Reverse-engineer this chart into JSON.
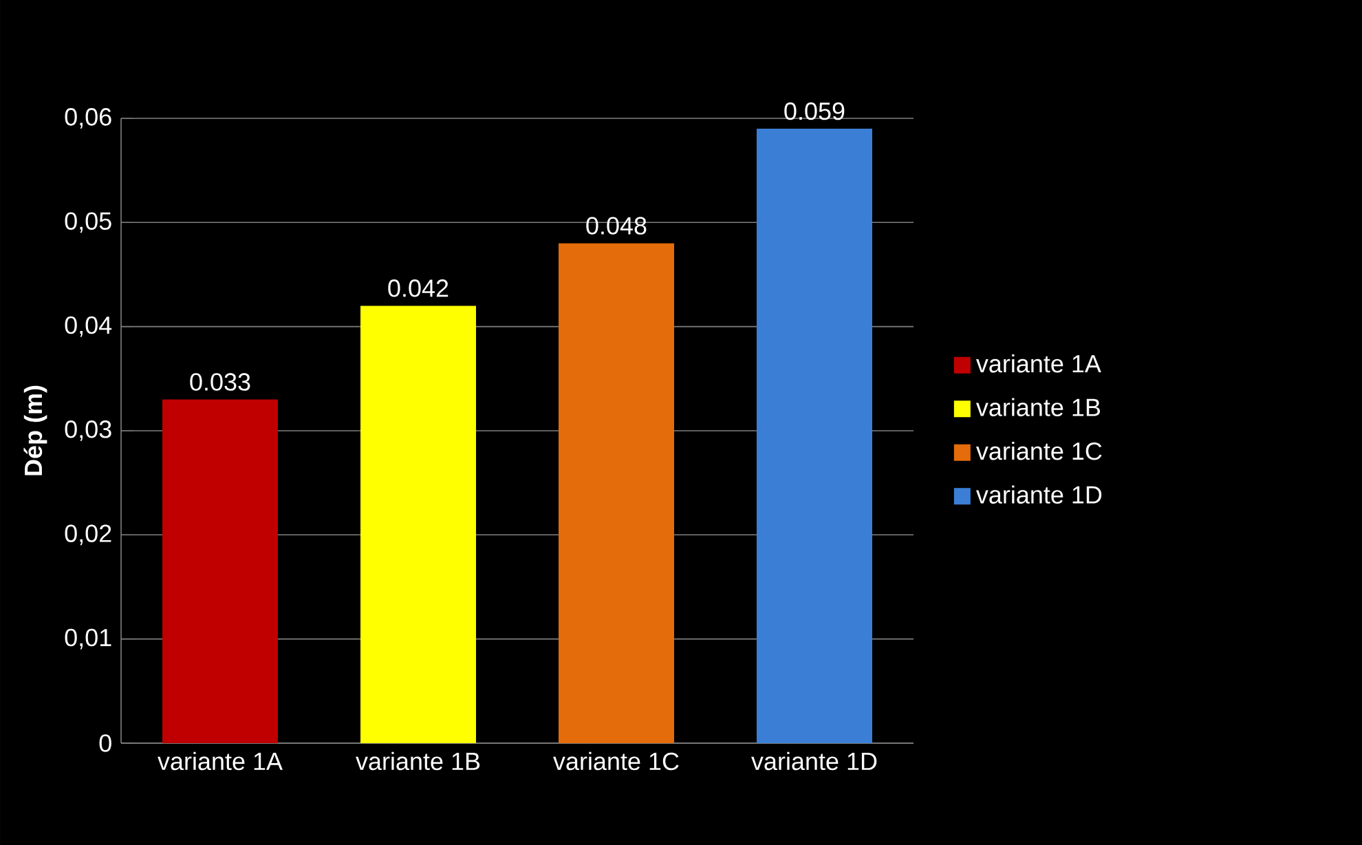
{
  "chart_data": {
    "type": "bar",
    "ylabel": "Dép (m)",
    "categories": [
      "variante 1A",
      "variante 1B",
      "variante 1C",
      "variante 1D"
    ],
    "series": [
      {
        "name": "variante 1A",
        "color": "#c00000",
        "values": [
          0.033,
          null,
          null,
          null
        ]
      },
      {
        "name": "variante 1B",
        "color": "#ffff00",
        "values": [
          null,
          0.042,
          null,
          null
        ]
      },
      {
        "name": "variante 1C",
        "color": "#e46c0a",
        "values": [
          null,
          null,
          0.048,
          null
        ]
      },
      {
        "name": "variante 1D",
        "color": "#3a7fd5",
        "values": [
          null,
          null,
          null,
          0.059
        ]
      }
    ],
    "ylim": [
      0,
      0.06
    ],
    "yticks": [
      {
        "value": 0,
        "label": "0"
      },
      {
        "value": 0.01,
        "label": "0,01"
      },
      {
        "value": 0.02,
        "label": "0,02"
      },
      {
        "value": 0.03,
        "label": "0,03"
      },
      {
        "value": 0.04,
        "label": "0,04"
      },
      {
        "value": 0.05,
        "label": "0,05"
      },
      {
        "value": 0.06,
        "label": "0,06"
      }
    ],
    "grid": "y",
    "legend": "right",
    "data_labels": true
  }
}
